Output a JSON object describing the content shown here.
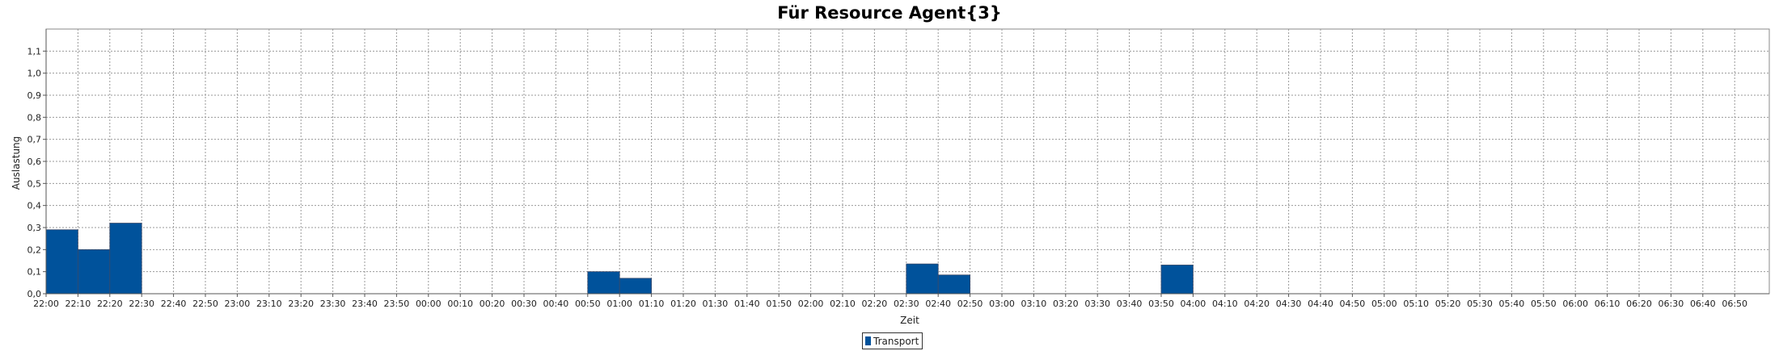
{
  "chart_data": {
    "type": "bar",
    "title": "Für Resource Agent{3}",
    "xlabel": "Zeit",
    "ylabel": "Auslastung",
    "ylim": [
      0,
      1.2
    ],
    "y_ticks": [
      "0,0",
      "0,1",
      "0,2",
      "0,3",
      "0,4",
      "0,5",
      "0,6",
      "0,7",
      "0,8",
      "0,9",
      "1,0",
      "1,1"
    ],
    "categories": [
      "22:00",
      "22:10",
      "22:20",
      "22:30",
      "22:40",
      "22:50",
      "23:00",
      "23:10",
      "23:20",
      "23:30",
      "23:40",
      "23:50",
      "00:00",
      "00:10",
      "00:20",
      "00:30",
      "00:40",
      "00:50",
      "01:00",
      "01:10",
      "01:20",
      "01:30",
      "01:40",
      "01:50",
      "02:00",
      "02:10",
      "02:20",
      "02:30",
      "02:40",
      "02:50",
      "03:00",
      "03:10",
      "03:20",
      "03:30",
      "03:40",
      "03:50",
      "04:00",
      "04:10",
      "04:20",
      "04:30",
      "04:40",
      "04:50",
      "05:00",
      "05:10",
      "05:20",
      "05:30",
      "05:40",
      "05:50",
      "06:00",
      "06:10",
      "06:20",
      "06:30",
      "06:40",
      "06:50"
    ],
    "series": [
      {
        "name": "Transport",
        "color": "#00529B",
        "values": [
          0.29,
          0.2,
          0.32,
          0,
          0,
          0,
          0,
          0,
          0,
          0,
          0,
          0,
          0,
          0,
          0,
          0,
          0,
          0.1,
          0.07,
          0,
          0,
          0,
          0,
          0,
          0,
          0,
          0,
          0.135,
          0.085,
          0,
          0,
          0,
          0,
          0,
          0,
          0.13,
          0,
          0,
          0,
          0,
          0,
          0,
          0,
          0,
          0,
          0,
          0,
          0,
          0,
          0,
          0,
          0,
          0,
          0
        ]
      }
    ],
    "grid": true,
    "legend_position": "bottom-center"
  }
}
